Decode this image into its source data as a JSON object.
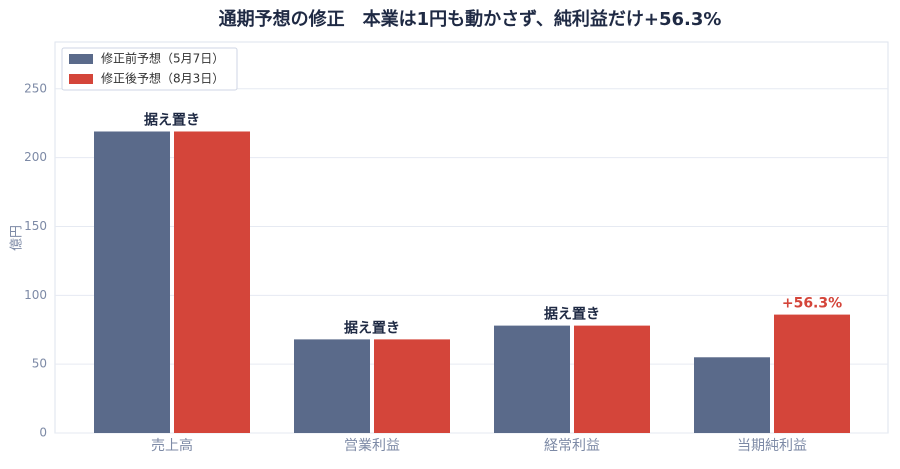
{
  "chart_data": {
    "type": "bar",
    "title": "通期予想の修正　本業は1円も動かさず、純利益だけ+56.3%",
    "y_label": "億円",
    "categories": [
      "売上高",
      "営業利益",
      "経常利益",
      "当期純利益"
    ],
    "series": [
      {
        "name": "修正前予想（5月7日）",
        "color": "#5a6a8a",
        "values": [
          219,
          68,
          78,
          55
        ]
      },
      {
        "name": "修正後予想（8月3日）",
        "color": "#d4453a",
        "values": [
          219,
          68,
          78,
          86
        ]
      }
    ],
    "annotations": [
      "据え置き",
      "据え置き",
      "据え置き",
      "+56.3%"
    ],
    "ylim": [
      0,
      284
    ],
    "yticks": [
      0,
      50,
      100,
      150,
      200,
      250
    ],
    "grid": true,
    "legend": "upper left"
  }
}
